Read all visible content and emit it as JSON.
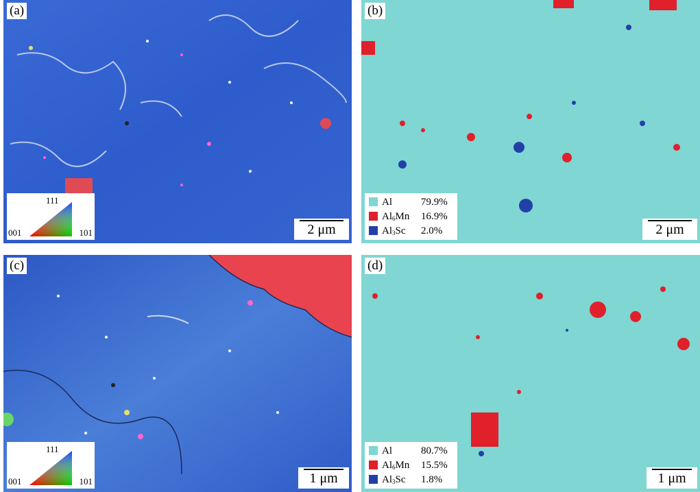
{
  "panels": {
    "a": {
      "label": "(a)",
      "scale": "2 μm",
      "ipf": {
        "t111": "111",
        "t001": "001",
        "t101": "101"
      }
    },
    "b": {
      "label": "(b)",
      "scale": "2 μm"
    },
    "c": {
      "label": "(c)",
      "scale": "1 μm",
      "ipf": {
        "t111": "111",
        "t001": "001",
        "t101": "101"
      }
    },
    "d": {
      "label": "(d)",
      "scale": "1 μm"
    }
  },
  "legend_b": {
    "al": {
      "name": "Al",
      "pct": "79.9%"
    },
    "al6mn": {
      "name_main": "Al",
      "name_sub": "6",
      "name_tail": "Mn",
      "pct": "16.9%"
    },
    "al3sc": {
      "name_main": "Al",
      "name_sub": "3",
      "name_tail": "Sc",
      "pct": "2.0%"
    }
  },
  "legend_d": {
    "al": {
      "name": "Al",
      "pct": "80.7%"
    },
    "al6mn": {
      "name_main": "Al",
      "name_sub": "6",
      "name_tail": "Mn",
      "pct": "15.5%"
    },
    "al3sc": {
      "name_main": "Al",
      "name_sub": "3",
      "name_tail": "Sc",
      "pct": "1.8%"
    }
  },
  "colors": {
    "ipf_blue": "#2f5fd0",
    "phase_al": "#7fd6d3",
    "phase_al6mn": "#e0202a",
    "phase_al3sc": "#2340a8",
    "grain_red": "#e8434f"
  }
}
